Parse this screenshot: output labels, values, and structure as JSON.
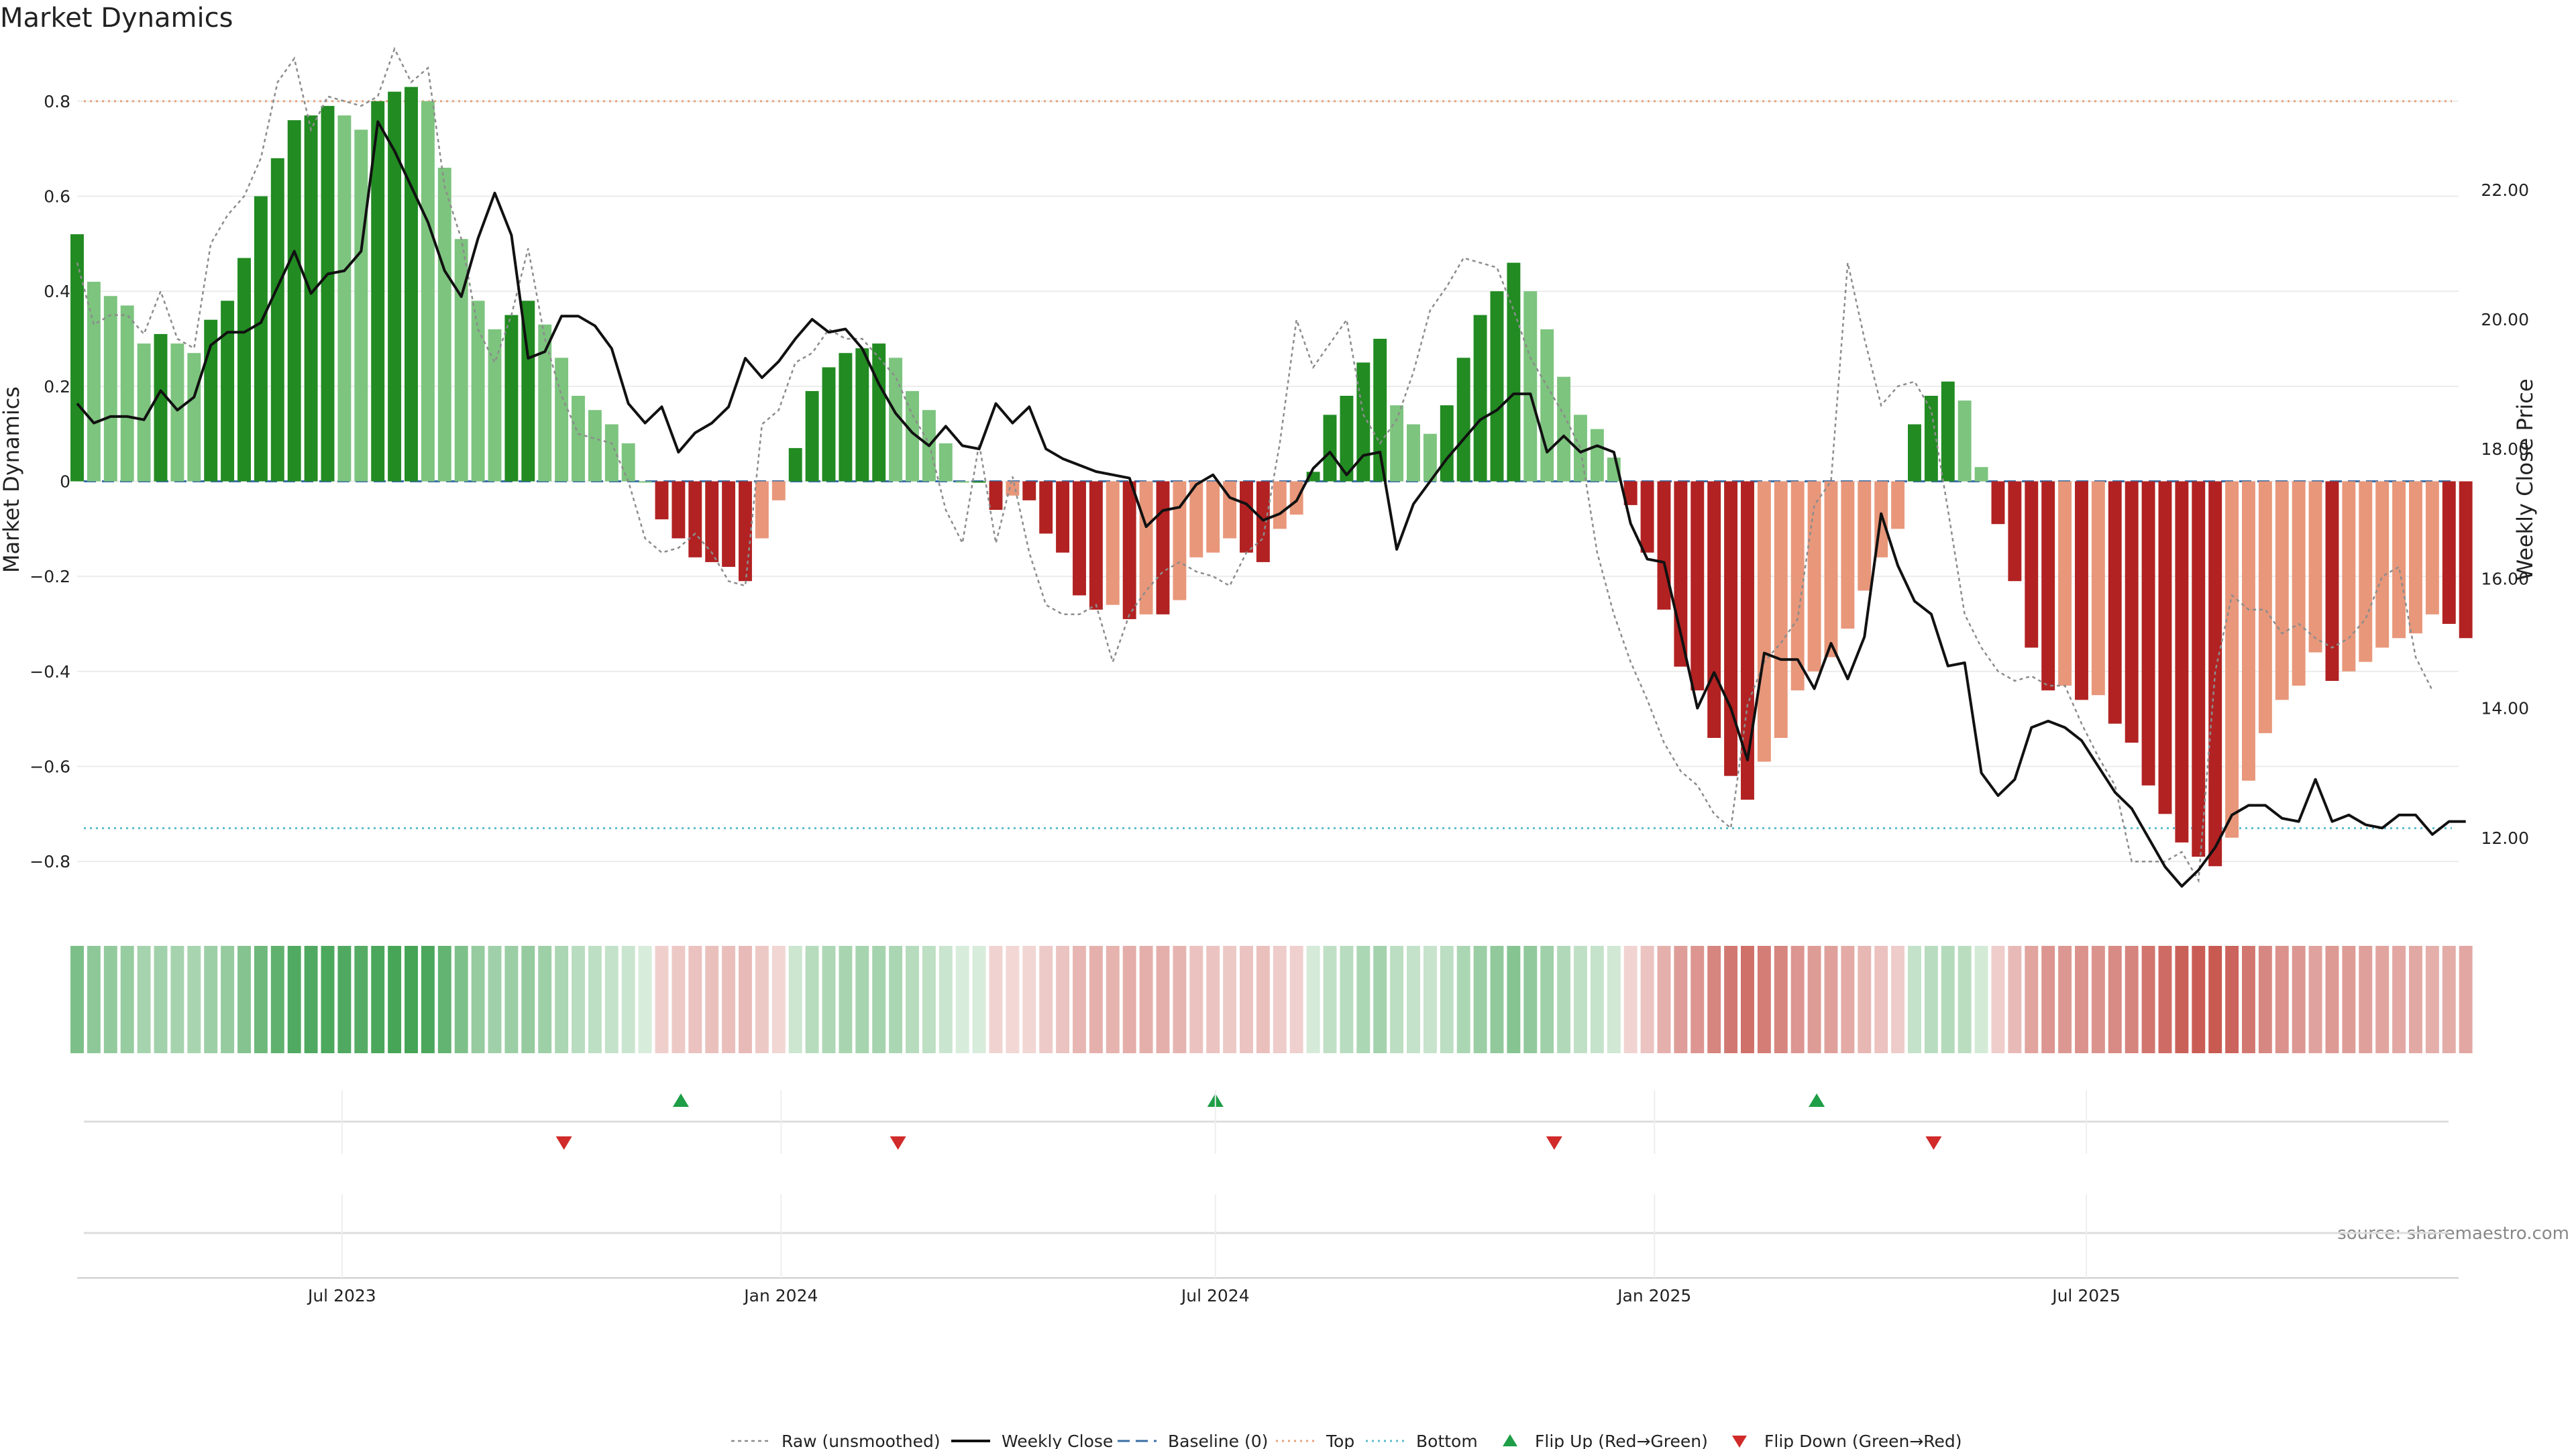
{
  "chart_data": {
    "type": "bar",
    "title": "Market Dynamics",
    "ylabel_left": "Market Dynamics",
    "ylabel_right": "Weekly Close Price",
    "source": "source: sharemaestro.com",
    "left_ylim": [
      -0.9,
      0.9
    ],
    "right_ylim": [
      10.9,
      24.1
    ],
    "left_ticks": [
      0.8,
      0.6,
      0.4,
      0.2,
      0,
      -0.2,
      -0.4,
      -0.6,
      -0.8
    ],
    "left_tick_labels": [
      "0.8",
      "0.6",
      "0.4",
      "0.2",
      "0",
      "−0.2",
      "−0.4",
      "−0.6",
      "−0.8"
    ],
    "right_ticks": [
      22,
      20,
      18,
      16,
      14,
      12
    ],
    "right_tick_labels": [
      "22.00",
      "20.00",
      "18.00",
      "16.00",
      "14.00",
      "12.00"
    ],
    "x_start": "2023-03-12",
    "x_end": "2025-12-04",
    "x_ticks": [
      {
        "label": "Jul 2023",
        "date": "2023-07-01"
      },
      {
        "label": "Jan 2024",
        "date": "2024-01-01"
      },
      {
        "label": "Jul 2024",
        "date": "2024-07-01"
      },
      {
        "label": "Jan 2025",
        "date": "2025-01-01"
      },
      {
        "label": "Jul 2025",
        "date": "2025-07-01"
      }
    ],
    "first_week": "2023-03-12",
    "top_level": 0.8,
    "bottom_level": -0.73,
    "baseline": 0,
    "momentum": [
      0.52,
      0.42,
      0.39,
      0.37,
      0.29,
      0.31,
      0.29,
      0.27,
      0.34,
      0.38,
      0.47,
      0.6,
      0.68,
      0.76,
      0.77,
      0.79,
      0.77,
      0.74,
      0.8,
      0.82,
      0.83,
      0.8,
      0.66,
      0.51,
      0.38,
      0.32,
      0.35,
      0.38,
      0.33,
      0.26,
      0.18,
      0.15,
      0.12,
      0.08,
      0,
      -0.08,
      -0.12,
      -0.16,
      -0.17,
      -0.18,
      -0.21,
      -0.12,
      -0.04,
      0.07,
      0.19,
      0.24,
      0.27,
      0.28,
      0.29,
      0.26,
      0.19,
      0.15,
      0.08,
      0,
      0,
      -0.06,
      -0.03,
      -0.04,
      -0.11,
      -0.15,
      -0.24,
      -0.27,
      -0.26,
      -0.29,
      -0.28,
      -0.28,
      -0.25,
      -0.16,
      -0.15,
      -0.12,
      -0.15,
      -0.17,
      -0.1,
      -0.07,
      0.02,
      0.14,
      0.18,
      0.25,
      0.3,
      0.16,
      0.12,
      0.1,
      0.16,
      0.26,
      0.35,
      0.4,
      0.46,
      0.4,
      0.32,
      0.22,
      0.14,
      0.11,
      0.05,
      -0.05,
      -0.15,
      -0.27,
      -0.39,
      -0.44,
      -0.54,
      -0.62,
      -0.67,
      -0.59,
      -0.54,
      -0.44,
      -0.4,
      -0.37,
      -0.31,
      -0.23,
      -0.16,
      -0.1,
      0.12,
      0.18,
      0.21,
      0.17,
      0.03,
      -0.09,
      -0.21,
      -0.35,
      -0.44,
      -0.43,
      -0.46,
      -0.45,
      -0.51,
      -0.55,
      -0.64,
      -0.7,
      -0.76,
      -0.79,
      -0.81,
      -0.75,
      -0.63,
      -0.53,
      -0.46,
      -0.43,
      -0.36,
      -0.42,
      -0.4,
      -0.38,
      -0.35,
      -0.33,
      -0.32,
      -0.28,
      -0.3,
      -0.33
    ],
    "raw": [
      0.46,
      0.33,
      0.35,
      0.35,
      0.31,
      0.4,
      0.3,
      0.28,
      0.5,
      0.56,
      0.6,
      0.68,
      0.84,
      0.89,
      0.74,
      0.81,
      0.8,
      0.79,
      0.81,
      0.91,
      0.84,
      0.87,
      0.62,
      0.51,
      0.32,
      0.25,
      0.35,
      0.49,
      0.3,
      0.18,
      0.1,
      0.09,
      0.08,
      0,
      -0.12,
      -0.15,
      -0.14,
      -0.11,
      -0.15,
      -0.21,
      -0.22,
      0.12,
      0.15,
      0.25,
      0.27,
      0.32,
      0.3,
      0.3,
      0.26,
      0.22,
      0.14,
      0.08,
      -0.06,
      -0.13,
      0.08,
      -0.13,
      0.01,
      -0.15,
      -0.26,
      -0.28,
      -0.28,
      -0.26,
      -0.38,
      -0.28,
      -0.23,
      -0.19,
      -0.17,
      -0.19,
      -0.2,
      -0.22,
      -0.15,
      -0.12,
      0.08,
      0.34,
      0.24,
      0.29,
      0.34,
      0.14,
      0.08,
      0.13,
      0.23,
      0.36,
      0.41,
      0.47,
      0.46,
      0.45,
      0.36,
      0.26,
      0.2,
      0.14,
      0.07,
      -0.15,
      -0.28,
      -0.38,
      -0.46,
      -0.55,
      -0.61,
      -0.64,
      -0.7,
      -0.73,
      -0.47,
      -0.38,
      -0.34,
      -0.29,
      -0.05,
      0.0,
      0.46,
      0.3,
      0.16,
      0.2,
      0.21,
      0.15,
      -0.06,
      -0.28,
      -0.35,
      -0.4,
      -0.42,
      -0.41,
      -0.43,
      -0.43,
      -0.51,
      -0.58,
      -0.64,
      -0.8,
      -0.8,
      -0.8,
      -0.78,
      -0.84,
      -0.4,
      -0.24,
      -0.27,
      -0.27,
      -0.32,
      -0.3,
      -0.33,
      -0.35,
      -0.33,
      -0.29,
      -0.2,
      -0.18,
      -0.37,
      -0.44
    ],
    "price": [
      18.7,
      18.4,
      18.5,
      18.5,
      18.45,
      18.9,
      18.6,
      18.8,
      19.6,
      19.8,
      19.8,
      19.95,
      20.5,
      21.05,
      20.4,
      20.7,
      20.75,
      21.05,
      23.05,
      22.6,
      22.05,
      21.5,
      20.75,
      20.35,
      21.25,
      21.95,
      21.3,
      19.4,
      19.5,
      20.05,
      20.05,
      19.9,
      19.55,
      18.7,
      18.4,
      18.65,
      17.95,
      18.25,
      18.4,
      18.65,
      19.4,
      19.1,
      19.35,
      19.7,
      20.0,
      19.8,
      19.85,
      19.55,
      19.0,
      18.55,
      18.25,
      18.05,
      18.35,
      18.05,
      18.0,
      18.7,
      18.4,
      18.65,
      18.0,
      17.85,
      17.75,
      17.65,
      17.6,
      17.55,
      16.8,
      17.05,
      17.1,
      17.45,
      17.6,
      17.25,
      17.15,
      16.9,
      17.0,
      17.2,
      17.7,
      17.95,
      17.6,
      17.9,
      17.95,
      16.45,
      17.15,
      17.5,
      17.85,
      18.15,
      18.45,
      18.6,
      18.85,
      18.85,
      17.95,
      18.2,
      17.95,
      18.05,
      17.95,
      16.85,
      16.3,
      16.25,
      15.15,
      14.0,
      14.55,
      14.0,
      13.2,
      14.85,
      14.75,
      14.75,
      14.3,
      15.0,
      14.45,
      15.1,
      17.0,
      16.2,
      15.65,
      15.45,
      14.65,
      14.7,
      13.0,
      12.65,
      12.9,
      13.7,
      13.8,
      13.7,
      13.5,
      13.1,
      12.7,
      12.45,
      12.0,
      11.55,
      11.25,
      11.5,
      11.85,
      12.35,
      12.5,
      12.5,
      12.3,
      12.25,
      12.9,
      12.25,
      12.35,
      12.2,
      12.15,
      12.35,
      12.35,
      12.05,
      12.25,
      12.25
    ],
    "flip_up_dates": [
      "2023-11-20",
      "2024-07-01",
      "2025-03-10"
    ],
    "flip_down_dates": [
      "2023-10-02",
      "2024-02-19",
      "2024-11-20",
      "2025-04-28"
    ],
    "legend": [
      {
        "key": "raw",
        "label": "Raw (unsmoothed)"
      },
      {
        "key": "close",
        "label": "Weekly Close"
      },
      {
        "key": "baseline",
        "label": "Baseline (0)"
      },
      {
        "key": "top",
        "label": "Top"
      },
      {
        "key": "bottom",
        "label": "Bottom"
      },
      {
        "key": "flip_up",
        "label": "Flip Up (Red→Green)"
      },
      {
        "key": "flip_down",
        "label": "Flip Down (Green→Red)"
      }
    ],
    "colors": {
      "bull_strong": "#228b22",
      "bull_weak": "#7dc47e",
      "bear_strong": "#b22222",
      "bear_weak": "#e8977a",
      "price_line": "#111111",
      "raw_line": "#8c8c8c",
      "baseline": "#3a6ea5",
      "top": "#e8a27c",
      "bottom": "#5bbccc",
      "flip_up": "#1e9e46",
      "flip_down": "#d12a2a",
      "grid": "#ececec"
    }
  }
}
